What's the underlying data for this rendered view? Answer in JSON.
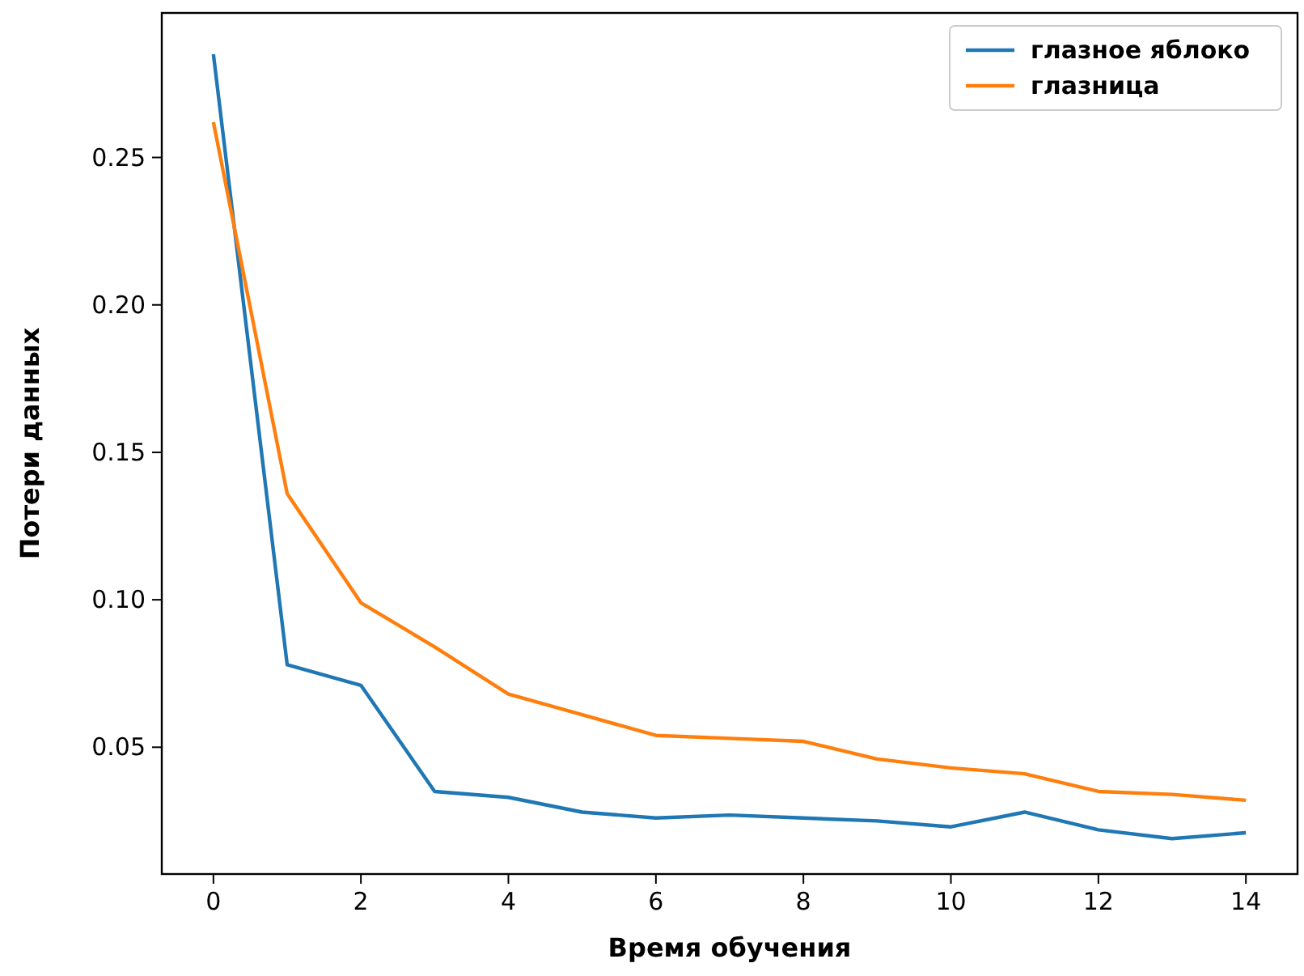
{
  "chart_data": {
    "type": "line",
    "xlabel": "Время обучения",
    "ylabel": "Потери данных",
    "x": [
      0,
      1,
      2,
      3,
      4,
      5,
      6,
      7,
      8,
      9,
      10,
      11,
      12,
      13,
      14
    ],
    "series": [
      {
        "name": "глазное яблоко",
        "color": "#1f77b4",
        "values": [
          0.285,
          0.078,
          0.071,
          0.035,
          0.033,
          0.028,
          0.026,
          0.027,
          0.026,
          0.025,
          0.023,
          0.028,
          0.022,
          0.019,
          0.021
        ]
      },
      {
        "name": "глазница",
        "color": "#ff7f0e",
        "values": [
          0.262,
          0.136,
          0.099,
          0.084,
          0.068,
          0.061,
          0.054,
          0.053,
          0.052,
          0.046,
          0.043,
          0.041,
          0.035,
          0.034,
          0.032
        ]
      }
    ],
    "xlim": [
      -0.7,
      14.7
    ],
    "xticks": [
      0,
      2,
      4,
      6,
      8,
      10,
      12,
      14
    ],
    "ylim": [
      0.007,
      0.299
    ],
    "yticks": [
      {
        "value": 0.05,
        "label": "0.05"
      },
      {
        "value": 0.1,
        "label": "0.10"
      },
      {
        "value": 0.15,
        "label": "0.15"
      },
      {
        "value": 0.2,
        "label": "0.20"
      },
      {
        "value": 0.25,
        "label": "0.25"
      }
    ],
    "legend": "top right",
    "grid": false,
    "marker": "none",
    "line_style": "solid"
  }
}
